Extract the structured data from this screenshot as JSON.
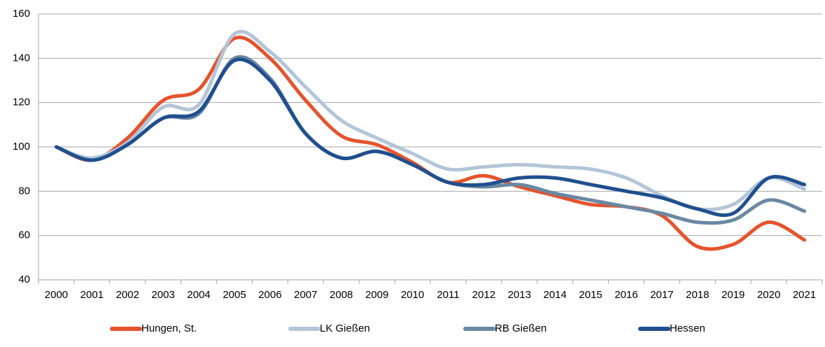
{
  "chart_data": {
    "type": "line",
    "categories": [
      "2000",
      "2001",
      "2002",
      "2003",
      "2004",
      "2005",
      "2006",
      "2007",
      "2008",
      "2009",
      "2010",
      "2011",
      "2012",
      "2013",
      "2014",
      "2015",
      "2016",
      "2017",
      "2018",
      "2019",
      "2020",
      "2021"
    ],
    "series": [
      {
        "name": "Hungen, St.",
        "color": "#e5532d",
        "values": [
          100,
          94,
          104,
          121,
          126,
          149,
          140,
          121,
          105,
          101,
          93,
          84,
          87,
          82,
          78,
          74,
          73,
          69,
          55,
          56,
          66,
          58
        ]
      },
      {
        "name": "LK Gießen",
        "color": "#b3c5d7",
        "values": [
          100,
          95,
          102,
          118,
          119,
          151,
          143,
          127,
          112,
          104,
          97,
          90,
          91,
          92,
          91,
          90,
          86,
          78,
          72,
          74,
          86,
          81
        ]
      },
      {
        "name": "RB Gießen",
        "color": "#6a88a2",
        "values": [
          100,
          94,
          101,
          113,
          115,
          140,
          131,
          106,
          95,
          98,
          92,
          84,
          82,
          83,
          79,
          76,
          73,
          70,
          66,
          67,
          76,
          71
        ]
      },
      {
        "name": "Hessen",
        "color": "#1f4f8e",
        "values": [
          100,
          94,
          101,
          113,
          116,
          139,
          130,
          106,
          95,
          98,
          92,
          84,
          83,
          86,
          86,
          83,
          80,
          77,
          72,
          70,
          86,
          83
        ]
      }
    ],
    "ylim": [
      40,
      160
    ],
    "yticks": [
      40,
      60,
      80,
      100,
      120,
      140,
      160
    ],
    "grid": true,
    "legend": "bottom"
  }
}
